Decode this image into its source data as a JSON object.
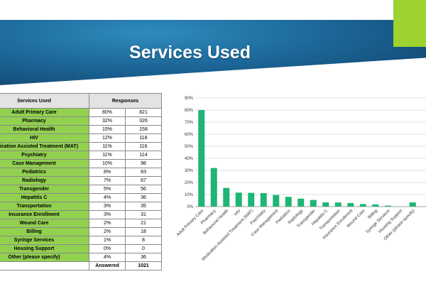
{
  "slide": {
    "title": "Services Used"
  },
  "table": {
    "headers": [
      "Services Used",
      "Responses"
    ],
    "rows": [
      {
        "label": "Adult Primary Care",
        "pct": "80%",
        "count": "821"
      },
      {
        "label": "Pharmacy",
        "pct": "32%",
        "count": "326"
      },
      {
        "label": "Behavioral Health",
        "pct": "15%",
        "count": "158"
      },
      {
        "label": "HIV",
        "pct": "12%",
        "count": "118"
      },
      {
        "label": "Medication Assisted Treatment (MAT)",
        "pct": "11%",
        "count": "116"
      },
      {
        "label": "Psychiatry",
        "pct": "11%",
        "count": "114"
      },
      {
        "label": "Case Management",
        "pct": "10%",
        "count": "98"
      },
      {
        "label": "Pediatrics",
        "pct": "8%",
        "count": "83"
      },
      {
        "label": "Radiology",
        "pct": "7%",
        "count": "67"
      },
      {
        "label": "Transgender",
        "pct": "5%",
        "count": "56"
      },
      {
        "label": "Hepatitis C",
        "pct": "4%",
        "count": "36"
      },
      {
        "label": "Transportation",
        "pct": "3%",
        "count": "35"
      },
      {
        "label": "Insurance Enrollment",
        "pct": "3%",
        "count": "31"
      },
      {
        "label": "Wound Care",
        "pct": "2%",
        "count": "21"
      },
      {
        "label": "Billing",
        "pct": "2%",
        "count": "18"
      },
      {
        "label": "Syringe Services",
        "pct": "1%",
        "count": "8"
      },
      {
        "label": "Housing Support",
        "pct": "0%",
        "count": "0"
      },
      {
        "label": "Other (please specify)",
        "pct": "4%",
        "count": "36"
      }
    ],
    "total_label": "Answered",
    "total_value": "1021"
  },
  "colors": {
    "bar": "#1fb574",
    "label_fill": "#92d050",
    "accent": "#9dd22f"
  },
  "chart_data": {
    "type": "bar",
    "categories": [
      "Adult Primary Care",
      "Pharmacy",
      "Behavioral Health",
      "HIV",
      "Medication Assisted Treatment (MAT)",
      "Psychiatry",
      "Case Management",
      "Pediatrics",
      "Radiology",
      "Transgender",
      "Hepatitis C",
      "Transportation",
      "Insurance Enrollment",
      "Wound Care",
      "Billing",
      "Syringe Services",
      "Housing Support",
      "Other (please specify)"
    ],
    "values": [
      80,
      32,
      15.5,
      11.6,
      11.4,
      11.2,
      9.6,
      8.1,
      6.6,
      5.5,
      3.5,
      3.4,
      3.0,
      2.1,
      1.8,
      0.8,
      0,
      3.5
    ],
    "y_ticks": [
      "0%",
      "10%",
      "20%",
      "30%",
      "40%",
      "50%",
      "60%",
      "70%",
      "80%",
      "90%"
    ],
    "ylim": [
      0,
      90
    ],
    "grid": true
  }
}
